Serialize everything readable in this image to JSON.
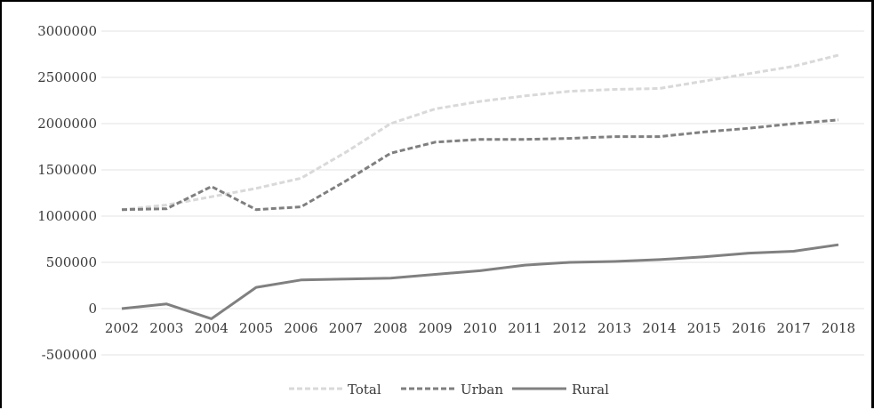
{
  "chart_data": {
    "type": "line",
    "title": "",
    "xlabel": "",
    "ylabel": "",
    "categories": [
      "2002",
      "2003",
      "2004",
      "2005",
      "2006",
      "2007",
      "2008",
      "2009",
      "2010",
      "2011",
      "2012",
      "2013",
      "2014",
      "2015",
      "2016",
      "2017",
      "2018"
    ],
    "ylim": [
      -500000,
      3000000
    ],
    "yticks": [
      3000000,
      2500000,
      2000000,
      1500000,
      1000000,
      500000,
      0,
      -500000
    ],
    "ytick_labels": [
      "3000000",
      "2500000",
      "2000000",
      "1500000",
      "1000000",
      "500000",
      "0",
      "-500000"
    ],
    "grid": "horizontal",
    "legend_position": "bottom",
    "series": [
      {
        "name": "Total",
        "color": "#d9d9d9",
        "style": "dashed",
        "values": [
          1070000,
          1120000,
          1210000,
          1300000,
          1410000,
          1690000,
          2000000,
          2160000,
          2240000,
          2300000,
          2350000,
          2370000,
          2380000,
          2460000,
          2540000,
          2620000,
          2740000
        ]
      },
      {
        "name": "Urban",
        "color": "#7f7f7f",
        "style": "dashed",
        "values": [
          1070000,
          1080000,
          1320000,
          1070000,
          1100000,
          1380000,
          1680000,
          1800000,
          1830000,
          1830000,
          1840000,
          1860000,
          1860000,
          1910000,
          1950000,
          2000000,
          2040000
        ]
      },
      {
        "name": "Rural",
        "color": "#808080",
        "style": "solid",
        "values": [
          0,
          50000,
          -110000,
          230000,
          310000,
          320000,
          330000,
          370000,
          410000,
          470000,
          500000,
          510000,
          530000,
          560000,
          600000,
          620000,
          690000
        ]
      }
    ]
  }
}
